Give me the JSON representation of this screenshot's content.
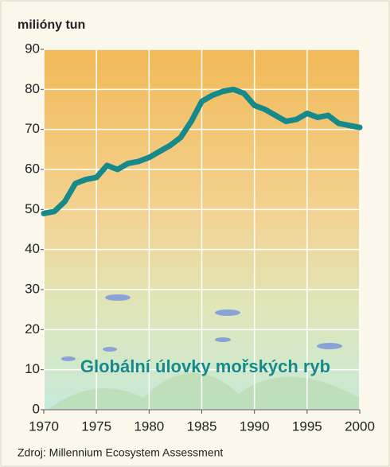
{
  "chart_data": {
    "type": "line",
    "y_axis_label": "milióny tun",
    "annotation": "Globální úlovky mořských ryb",
    "source": "Zdroj: Millennium Ecosystem Assessment",
    "x": [
      1970,
      1971,
      1972,
      1973,
      1974,
      1975,
      1976,
      1977,
      1978,
      1979,
      1980,
      1981,
      1982,
      1983,
      1984,
      1985,
      1986,
      1987,
      1988,
      1989,
      1990,
      1991,
      1992,
      1993,
      1994,
      1995,
      1996,
      1997,
      1998,
      1999,
      2000
    ],
    "series": [
      {
        "name": "Globální úlovky mořských ryb",
        "color": "#16898a",
        "values": [
          49,
          49.5,
          52,
          56.5,
          57.5,
          58,
          61,
          60,
          61.5,
          62,
          63,
          64.5,
          66,
          68,
          72,
          77,
          78.5,
          79.5,
          80,
          79,
          76,
          75,
          73.5,
          72,
          72.5,
          74,
          73,
          73.5,
          71.5,
          71,
          70.5
        ]
      }
    ],
    "xlim": [
      1970,
      2000
    ],
    "xticks": [
      1970,
      1975,
      1980,
      1985,
      1990,
      1995,
      2000
    ],
    "ylim": [
      0,
      90
    ],
    "yticks": [
      0,
      10,
      20,
      30,
      40,
      50,
      60,
      70,
      80,
      90
    ],
    "grid": true
  }
}
